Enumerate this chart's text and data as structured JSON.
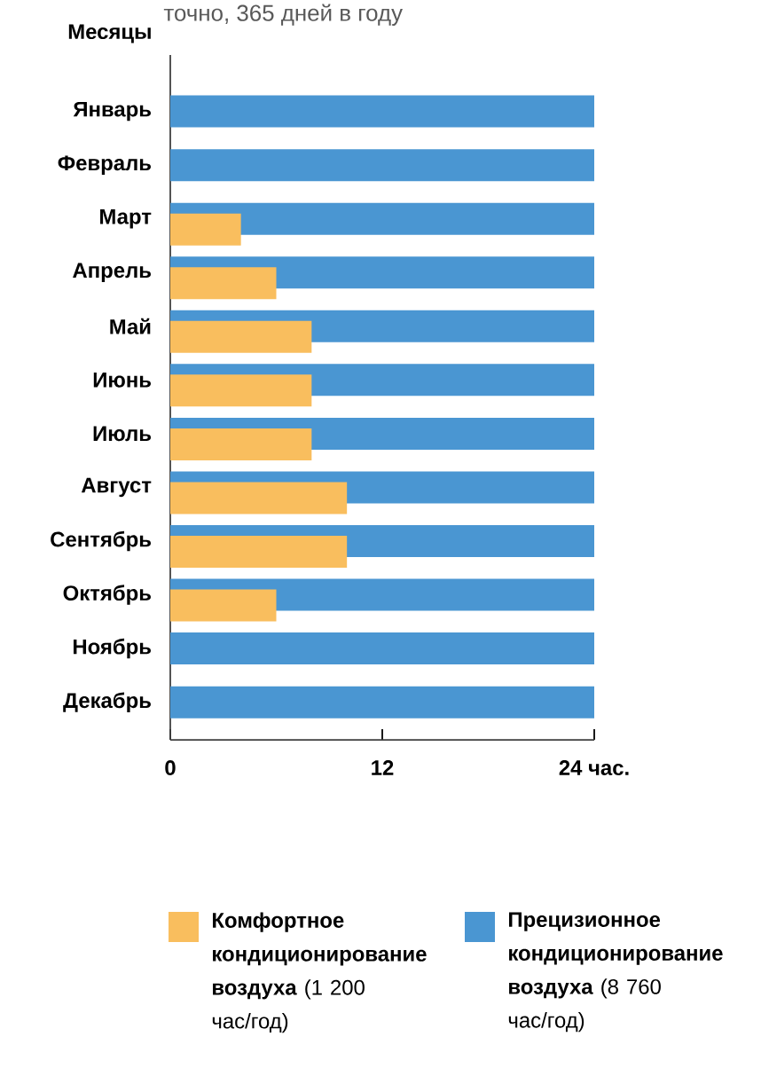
{
  "chart_data": {
    "type": "bar",
    "orientation": "horizontal",
    "subtitle": "точно, 365 дней в году",
    "ylabel": "Месяцы",
    "categories": [
      "Январь",
      "Февраль",
      "Март",
      "Апрель",
      "Май",
      "Июнь",
      "Июль",
      "Август",
      "Сентябрь",
      "Октябрь",
      "Ноябрь",
      "Декабрь"
    ],
    "series": [
      {
        "name": "**Прецизионное кондиционирование воздуха** (8 760 час/год)",
        "color": "#4a96d2",
        "values": [
          24,
          24,
          24,
          24,
          24,
          24,
          24,
          24,
          24,
          24,
          24,
          24
        ]
      },
      {
        "name": "**Комфортное кондиционирование воздуха** (1 200 час/год)",
        "color": "#f9be5e",
        "values": [
          null,
          null,
          4,
          6,
          8,
          8,
          8,
          10,
          10,
          6,
          null,
          null
        ]
      }
    ],
    "xlim": [
      0,
      24
    ],
    "xticks": [
      0,
      12,
      {
        "value": 24,
        "label": "24 час."
      }
    ],
    "legend": "bottom"
  }
}
